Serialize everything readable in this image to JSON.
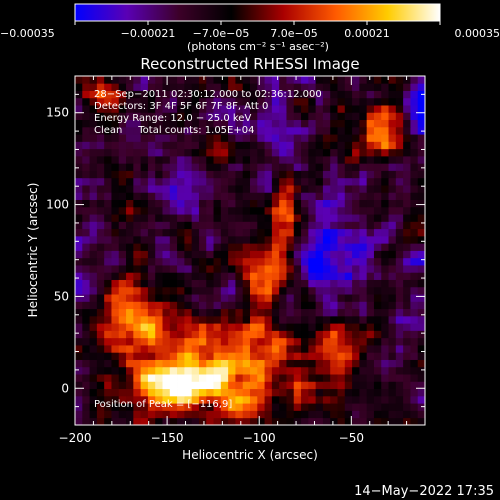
{
  "chart_data": {
    "type": "heatmap",
    "title": "Reconstructed RHESSI Image",
    "xlabel": "Heliocentric X (arcsec)",
    "ylabel": "Heliocentric Y (arcsec)",
    "xlim": [
      -200,
      -10
    ],
    "ylim": [
      -20,
      170
    ],
    "xticks": [
      -200,
      -150,
      -100,
      -50
    ],
    "xtick_labels": [
      "−200",
      "−150",
      "−100",
      "−50"
    ],
    "yticks": [
      0,
      50,
      100,
      150
    ],
    "ytick_labels": [
      "0",
      "50",
      "100",
      "150"
    ],
    "colorbar": {
      "range": [
        -0.00035,
        0.00035
      ],
      "ticks": [
        -0.00035,
        -0.00021,
        -7e-05,
        7e-05,
        0.00021,
        0.00035
      ],
      "tick_labels": [
        "−0.00035",
        "−0.00021",
        "−7.0e−05",
        "7.0e−05",
        "0.00021",
        "0.00035"
      ],
      "unit_label": "(photons cm⁻² s⁻¹ asec⁻²)"
    },
    "annotations": [
      "28−Sep−2011 02:30:12.000 to 02:36:12.000",
      "Detectors: 3F 4F 5F 6F 7F 8F, Att 0",
      "Energy Range: 12.0 − 25.0 keV",
      "Clean     Total counts: 1.05E+04"
    ],
    "peak_label": "Position of Peak = [−116,9]",
    "timestamp": "14−May−2022 17:35",
    "grid": false,
    "colormap": [
      "#0000ff",
      "#5a00b4",
      "#3c0028",
      "#000000",
      "#aa0000",
      "#ff5a00",
      "#ffcc00",
      "#ffffff"
    ],
    "hotspots": [
      {
        "x": -118,
        "y": 8,
        "sx": 28,
        "sy": 16,
        "amp": 0.0004
      },
      {
        "x": -165,
        "y": 40,
        "sx": 14,
        "sy": 14,
        "amp": 0.00033
      },
      {
        "x": -150,
        "y": 0,
        "sx": 14,
        "sy": 10,
        "amp": 0.00028
      },
      {
        "x": -95,
        "y": 65,
        "sx": 8,
        "sy": 18,
        "amp": 0.00028
      },
      {
        "x": -85,
        "y": 95,
        "sx": 6,
        "sy": 12,
        "amp": 0.00024
      },
      {
        "x": -30,
        "y": 140,
        "sx": 12,
        "sy": 10,
        "amp": 0.0003
      },
      {
        "x": -185,
        "y": 160,
        "sx": 10,
        "sy": 8,
        "amp": 0.0002
      },
      {
        "x": -60,
        "y": 25,
        "sx": 12,
        "sy": 10,
        "amp": 0.00017
      },
      {
        "x": -120,
        "y": 130,
        "sx": 10,
        "sy": 8,
        "amp": 0.00014
      }
    ],
    "coldspots": [
      {
        "x": -12,
        "y": 150,
        "sx": 10,
        "sy": 14,
        "amp": -0.0003
      },
      {
        "x": -140,
        "y": 110,
        "sx": 10,
        "sy": 14,
        "amp": -0.00015
      },
      {
        "x": -60,
        "y": 70,
        "sx": 15,
        "sy": 18,
        "amp": -0.00018
      },
      {
        "x": -195,
        "y": 60,
        "sx": 10,
        "sy": 12,
        "amp": -0.00012
      },
      {
        "x": -100,
        "y": 140,
        "sx": 15,
        "sy": 12,
        "amp": -0.0001
      }
    ]
  }
}
